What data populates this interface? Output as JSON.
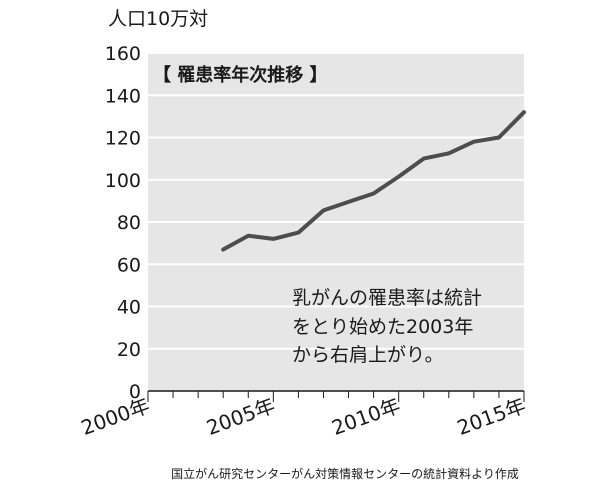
{
  "chart_data": {
    "type": "line",
    "title": "【 罹患率年次推移 】",
    "ylabel": "人口10万対",
    "xlabel": "",
    "ylim": [
      0,
      160
    ],
    "xlim": [
      2000,
      2015
    ],
    "yticks": [
      "0",
      "20",
      "40",
      "60",
      "80",
      "100",
      "120",
      "140",
      "160"
    ],
    "xticks": [
      {
        "x": 2000,
        "label": "2000年"
      },
      {
        "x": 2005,
        "label": "2005年"
      },
      {
        "x": 2010,
        "label": "2010年"
      },
      {
        "x": 2015,
        "label": "2015年"
      }
    ],
    "grid": "horizontal",
    "x": [
      2003,
      2004,
      2005,
      2006,
      2007,
      2008,
      2009,
      2010,
      2011,
      2012,
      2013,
      2014,
      2015
    ],
    "series": [
      {
        "values": [
          67,
          73.5,
          72,
          75,
          85.5,
          89.5,
          93.5,
          101.5,
          110,
          112.5,
          118,
          120,
          132
        ]
      }
    ],
    "annotation": [
      "乳がんの罹患率は統計",
      "をとり始めた2003年",
      "から右肩上がり。"
    ],
    "source": "国立がん研究センターがん対策情報センターの統計資料より作成",
    "colors": {
      "plot_bg": "#e6e6e6",
      "grid": "#ffffff",
      "line": "#4d4d4d",
      "text": "#1a1a1a"
    }
  }
}
